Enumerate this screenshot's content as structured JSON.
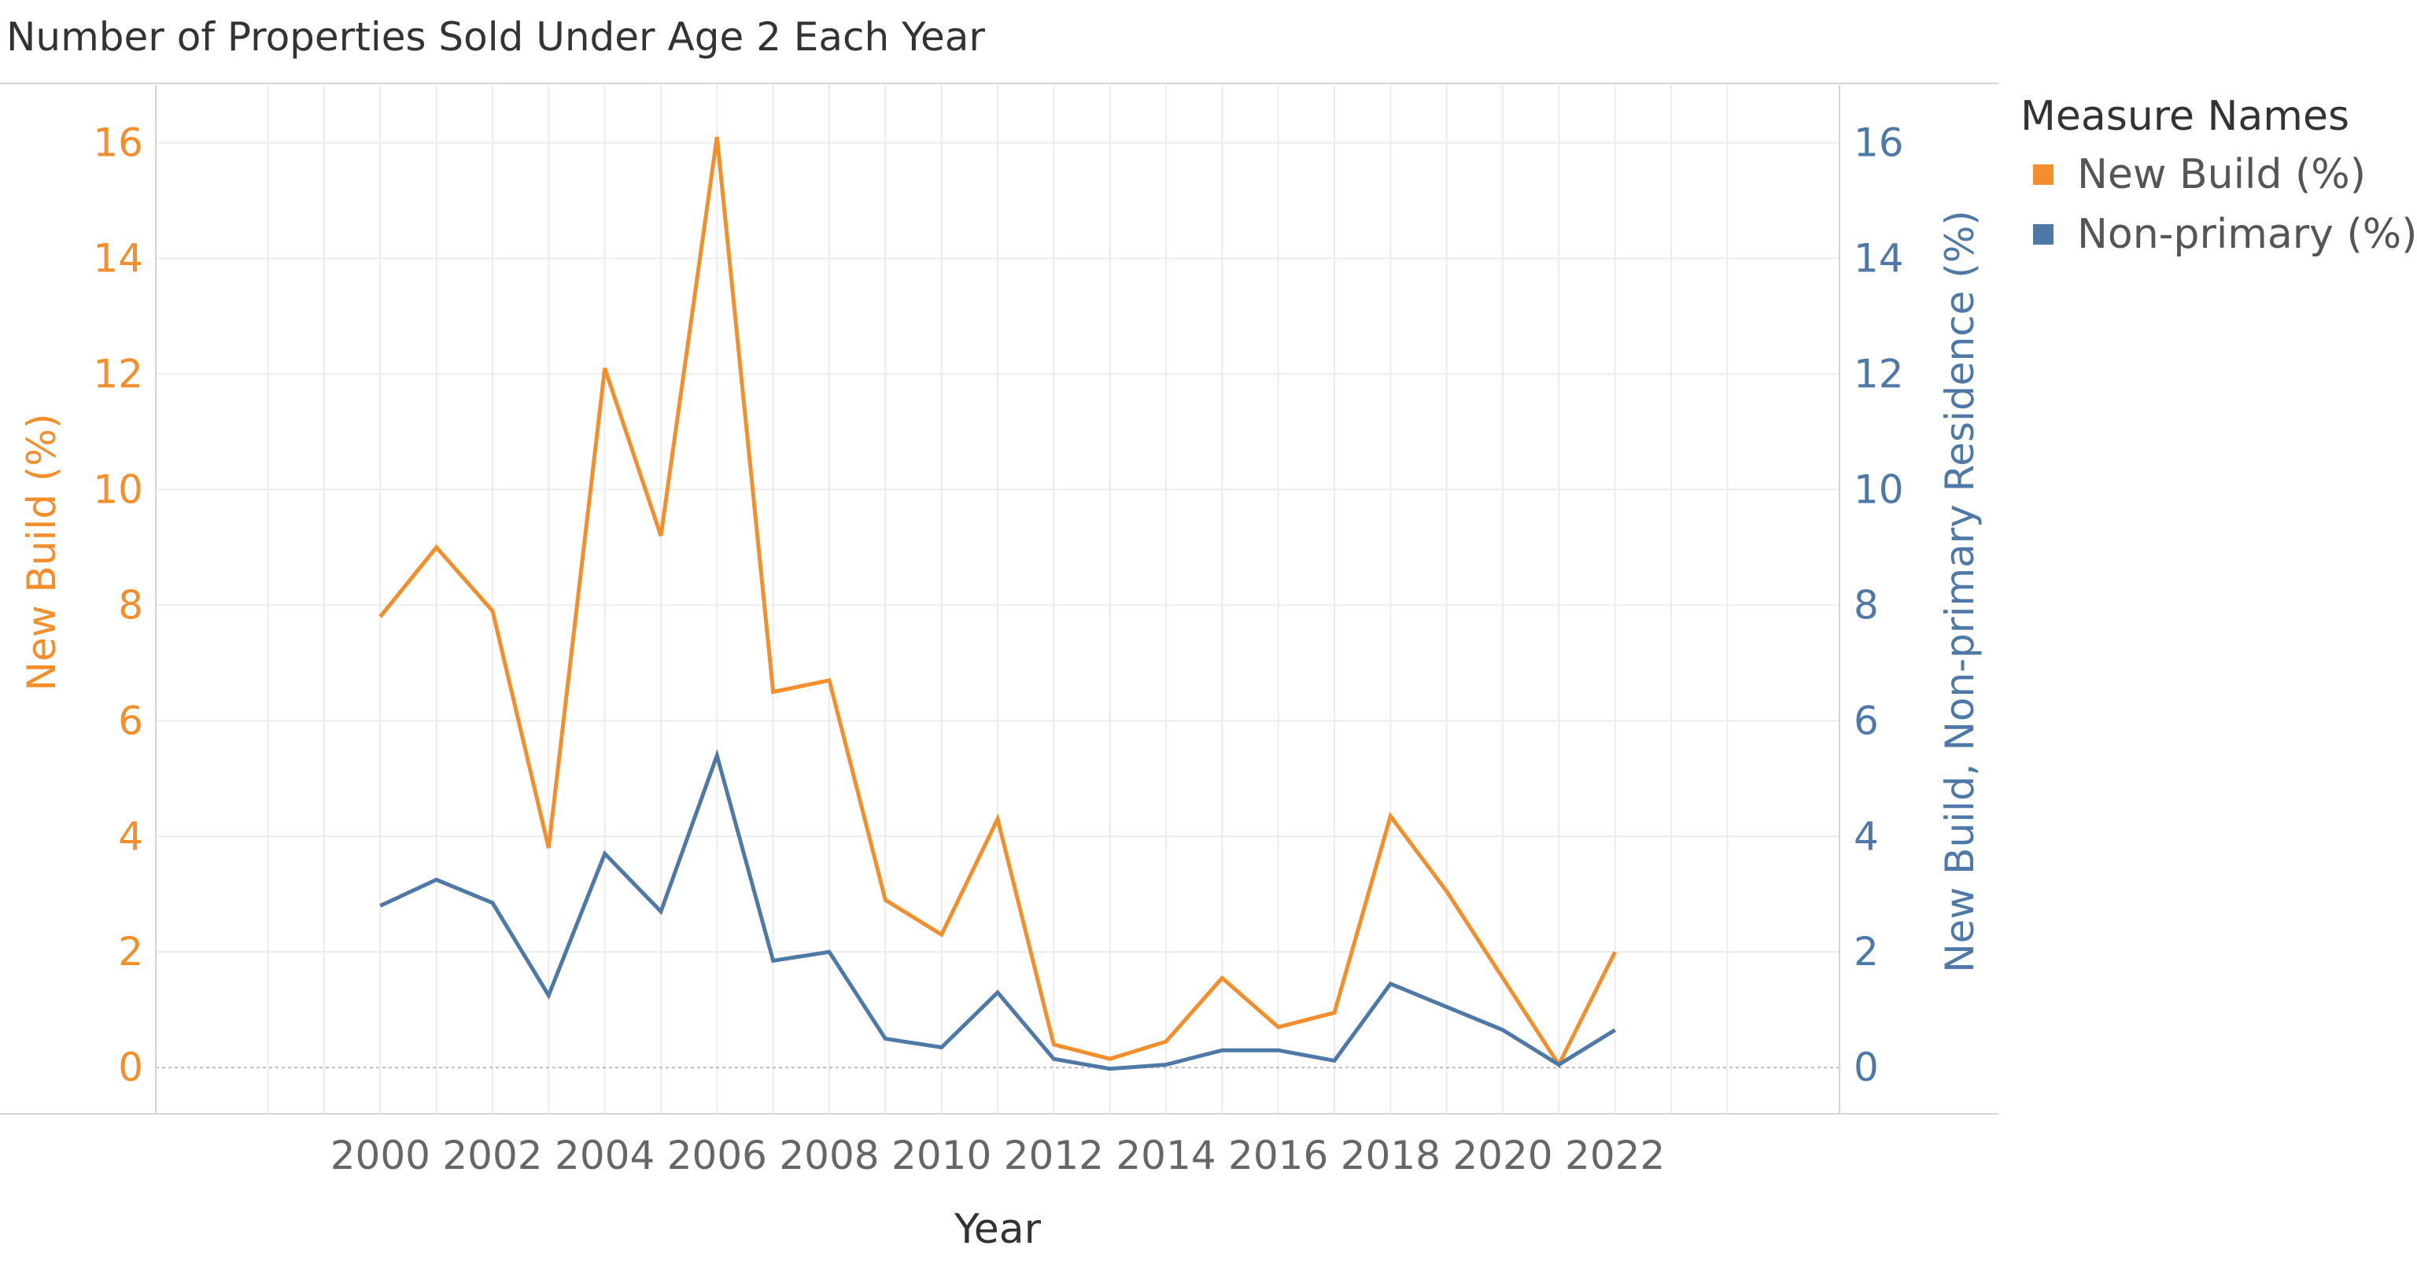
{
  "title": "Number of Properties Sold Under Age 2 Each Year",
  "colors": {
    "new_build": "#f28e2b",
    "non_primary": "#4e79a7",
    "grid": "#ececec",
    "axis": "#d4d4d4",
    "tick_text": "#666666"
  },
  "legend": {
    "title": "Measure Names",
    "items": [
      {
        "label": "New Build (%)",
        "color": "#f28e2b"
      },
      {
        "label": "Non-primary (%)",
        "color": "#4e79a7"
      }
    ]
  },
  "chart_data": {
    "type": "line",
    "title": "Number of Properties Sold Under Age 2 Each Year",
    "xlabel": "Year",
    "ylabel_left": "New Build (%)",
    "ylabel_right": "New Build, Non-primary Residence (%)",
    "xlim": [
      1996,
      2026
    ],
    "x_ticks": [
      2000,
      2002,
      2004,
      2006,
      2008,
      2010,
      2012,
      2014,
      2016,
      2018,
      2020,
      2022
    ],
    "ylim": [
      -0.8,
      17
    ],
    "y_ticks": [
      0,
      2,
      4,
      6,
      8,
      10,
      12,
      14,
      16
    ],
    "grid": true,
    "legend_position": "right",
    "x": [
      2000,
      2001,
      2002,
      2003,
      2004,
      2005,
      2006,
      2007,
      2008,
      2009,
      2010,
      2011,
      2012,
      2013,
      2014,
      2015,
      2016,
      2017,
      2018,
      2019,
      2020,
      2021,
      2022
    ],
    "series": [
      {
        "name": "New Build (%)",
        "axis": "left",
        "color": "#f28e2b",
        "values": [
          7.8,
          9.0,
          7.9,
          3.8,
          12.1,
          9.2,
          16.1,
          6.5,
          6.7,
          2.9,
          2.3,
          4.3,
          0.4,
          0.15,
          0.45,
          1.55,
          0.7,
          0.95,
          4.35,
          3.05,
          1.55,
          0.05,
          2.0
        ]
      },
      {
        "name": "Non-primary (%)",
        "axis": "right",
        "color": "#4e79a7",
        "values": [
          2.8,
          3.25,
          2.85,
          1.25,
          3.7,
          2.7,
          5.4,
          1.85,
          2.0,
          0.5,
          0.35,
          1.3,
          0.15,
          -0.02,
          0.05,
          0.3,
          0.3,
          0.12,
          1.45,
          1.05,
          0.65,
          0.05,
          0.65
        ]
      }
    ]
  }
}
